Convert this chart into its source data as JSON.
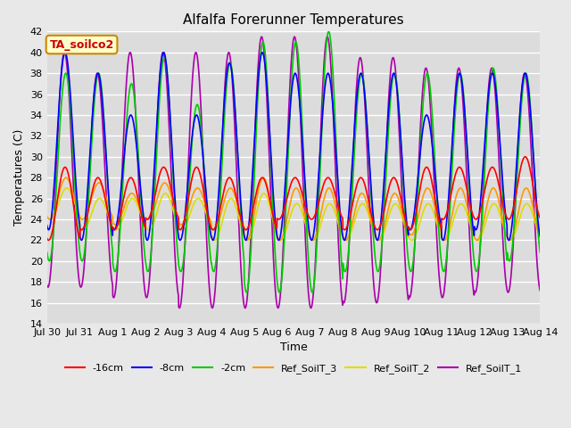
{
  "title": "Alfalfa Forerunner Temperatures",
  "xlabel": "Time",
  "ylabel": "Temperatures (C)",
  "ylim": [
    14,
    42
  ],
  "yticks": [
    14,
    16,
    18,
    20,
    22,
    24,
    26,
    28,
    30,
    32,
    34,
    36,
    38,
    40,
    42
  ],
  "background_color": "#e8e8e8",
  "plot_bg_color": "#dcdcdc",
  "grid_color": "#ffffff",
  "series_colors": {
    "s16": "#ff0000",
    "s8": "#0000ff",
    "s2": "#00cc00",
    "sr3": "#ff9900",
    "sr2": "#dddd00",
    "sr1": "#aa00aa"
  },
  "annotation_text": "TA_soilco2",
  "annotation_color": "#cc0000",
  "annotation_bg": "#ffffcc",
  "annotation_border": "#cc8800",
  "tick_labels": [
    "Jul 30",
    "Jul 31",
    "Aug 1",
    "Aug 2",
    "Aug 3",
    "Aug 4",
    "Aug 5",
    "Aug 6",
    "Aug 7",
    "Aug 8",
    "Aug 9",
    "Aug 10",
    "Aug 11",
    "Aug 12",
    "Aug 13",
    "Aug 14"
  ],
  "legend_labels": [
    "-16cm",
    "-8cm",
    "-2cm",
    "Ref_SoilT_3",
    "Ref_SoilT_2",
    "Ref_SoilT_1"
  ]
}
